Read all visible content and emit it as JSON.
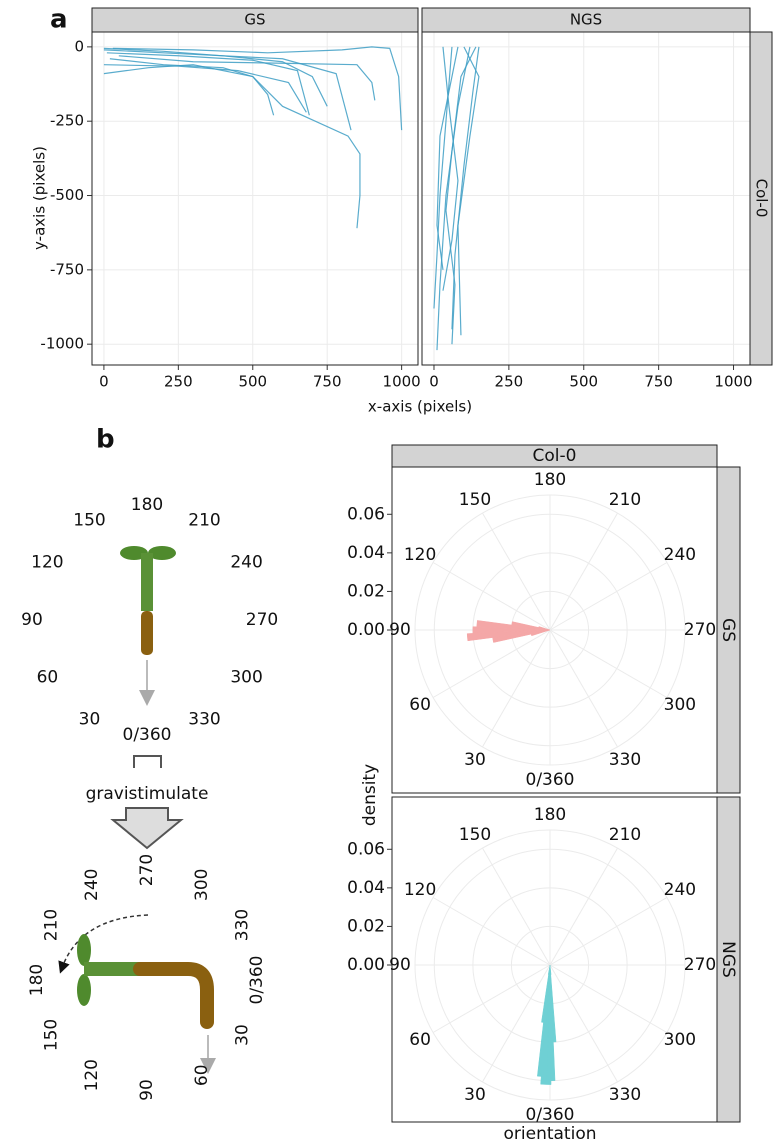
{
  "panel_labels": [
    "a",
    "b"
  ],
  "chart_data": [
    {
      "type": "line",
      "facet": "GS",
      "row_facet": "Col-0",
      "xlabel": "x-axis (pixels)",
      "ylabel": "y-axis (pixels)",
      "xlim": [
        -40,
        1055
      ],
      "ylim": [
        -1070,
        50
      ],
      "xticks": [
        0,
        250,
        500,
        750,
        1000
      ],
      "yticks": [
        0,
        -250,
        -500,
        -750,
        -1000
      ],
      "grid": true,
      "series": [
        {
          "color": "#3d9dc4",
          "x": [
            0,
            200,
            400,
            600,
            700,
            750
          ],
          "values": [
            -5,
            -15,
            -30,
            -50,
            -100,
            -200
          ]
        },
        {
          "color": "#3d9dc4",
          "x": [
            10,
            250,
            500,
            650,
            690
          ],
          "values": [
            -20,
            -30,
            -45,
            -80,
            -230
          ]
        },
        {
          "color": "#3d9dc4",
          "x": [
            0,
            300,
            600,
            780,
            830
          ],
          "values": [
            -10,
            -25,
            -40,
            -90,
            -280
          ]
        },
        {
          "color": "#3d9dc4",
          "x": [
            30,
            300,
            550,
            800,
            900,
            960,
            990,
            1000
          ],
          "values": [
            -5,
            -10,
            -20,
            -10,
            0,
            -5,
            -100,
            -280
          ]
        },
        {
          "color": "#3d9dc4",
          "x": [
            0,
            150,
            300,
            500,
            600,
            820,
            860,
            860,
            850
          ],
          "values": [
            -90,
            -70,
            -60,
            -100,
            -200,
            -300,
            -360,
            -500,
            -610
          ]
        },
        {
          "color": "#3d9dc4",
          "x": [
            20,
            200,
            400,
            500,
            550,
            570
          ],
          "values": [
            -40,
            -60,
            -70,
            -100,
            -160,
            -230
          ]
        },
        {
          "color": "#3d9dc4",
          "x": [
            50,
            300,
            600,
            850,
            900,
            910
          ],
          "values": [
            -30,
            -50,
            -55,
            -60,
            -120,
            -180
          ]
        },
        {
          "color": "#3d9dc4",
          "x": [
            0,
            250,
            450,
            620,
            680
          ],
          "values": [
            -60,
            -65,
            -80,
            -120,
            -220
          ]
        }
      ]
    },
    {
      "type": "line",
      "facet": "NGS",
      "xlim": [
        -40,
        1055
      ],
      "ylim": [
        -1070,
        50
      ],
      "xticks": [
        0,
        250,
        500,
        750,
        1000
      ],
      "grid": true,
      "series": [
        {
          "color": "#3d9dc4",
          "x": [
            120,
            80,
            40,
            20,
            10
          ],
          "values": [
            0,
            -200,
            -500,
            -800,
            -1020
          ]
        },
        {
          "color": "#3d9dc4",
          "x": [
            150,
            130,
            100,
            70,
            60
          ],
          "values": [
            0,
            -150,
            -400,
            -700,
            -950
          ]
        },
        {
          "color": "#3d9dc4",
          "x": [
            60,
            40,
            20,
            10,
            0
          ],
          "values": [
            0,
            -250,
            -500,
            -700,
            -880
          ]
        },
        {
          "color": "#3d9dc4",
          "x": [
            100,
            150,
            120,
            80,
            90
          ],
          "values": [
            0,
            -100,
            -300,
            -600,
            -970
          ]
        },
        {
          "color": "#3d9dc4",
          "x": [
            30,
            50,
            80,
            60,
            30
          ],
          "values": [
            0,
            -200,
            -450,
            -650,
            -820
          ]
        },
        {
          "color": "#3d9dc4",
          "x": [
            140,
            90,
            60,
            40,
            70,
            60
          ],
          "values": [
            0,
            -100,
            -350,
            -550,
            -800,
            -1000
          ]
        },
        {
          "color": "#3d9dc4",
          "x": [
            80,
            20,
            10,
            30
          ],
          "values": [
            0,
            -300,
            -600,
            -750
          ]
        }
      ]
    },
    {
      "type": "polar",
      "facet_top": "Col-0",
      "facet": "GS",
      "ylabel": "density",
      "rlim": [
        0,
        0.07
      ],
      "rticks": [
        {
          "value": 0,
          "label": "0.00"
        },
        {
          "value": 0.02,
          "label": "0.02"
        },
        {
          "value": 0.04,
          "label": "0.04"
        },
        {
          "value": 0.06,
          "label": "0.06"
        }
      ],
      "angle_ticks": [
        {
          "value": 0,
          "label": "0/360"
        },
        30,
        60,
        90,
        120,
        150,
        180,
        210,
        240,
        270,
        300,
        330
      ],
      "series": [
        {
          "color": "#f4a7a7",
          "x": [
            75,
            80,
            85,
            90,
            95,
            100,
            105
          ],
          "values": [
            0.01,
            0.03,
            0.043,
            0.04,
            0.038,
            0.02,
            0.006
          ]
        }
      ]
    },
    {
      "type": "polar",
      "facet": "NGS",
      "xlabel": "orientation",
      "rlim": [
        0,
        0.07
      ],
      "rticks": [
        {
          "value": 0,
          "label": "0.00"
        },
        {
          "value": 0.02,
          "label": "0.02"
        },
        {
          "value": 0.04,
          "label": "0.04"
        },
        {
          "value": 0.06,
          "label": "0.06"
        }
      ],
      "angle_ticks": [
        {
          "value": 0,
          "label": "0/360"
        },
        30,
        60,
        90,
        120,
        150,
        180,
        210,
        240,
        270,
        300,
        330
      ],
      "series": [
        {
          "color": "#6fd0d4",
          "x": [
            356,
            358,
            0,
            2,
            4,
            6,
            8
          ],
          "values": [
            0.005,
            0.04,
            0.06,
            0.062,
            0.058,
            0.03,
            0.005
          ]
        }
      ]
    }
  ],
  "diagram": {
    "before": [
      "0/360",
      "30",
      "60",
      "90",
      "120",
      "150",
      "180",
      "210",
      "240",
      "270",
      "300",
      "330"
    ],
    "action": "gravistimulate",
    "after": [
      "0/360",
      "30",
      "60",
      "90",
      "120",
      "150",
      "180",
      "210",
      "240",
      "270",
      "300",
      "330"
    ]
  }
}
